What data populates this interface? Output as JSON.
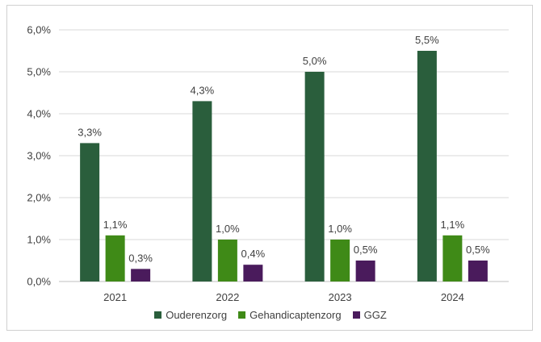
{
  "chart_data": {
    "type": "bar",
    "categories": [
      "2021",
      "2022",
      "2023",
      "2024"
    ],
    "series": [
      {
        "name": "Ouderenzorg",
        "values": [
          3.3,
          4.3,
          5.0,
          5.5
        ],
        "labels": [
          "3,3%",
          "4,3%",
          "5,0%",
          "5,5%"
        ],
        "color": "#2a5e3c"
      },
      {
        "name": "Gehandicaptenzorg",
        "values": [
          1.1,
          1.0,
          1.0,
          1.1
        ],
        "labels": [
          "1,1%",
          "1,0%",
          "1,0%",
          "1,1%"
        ],
        "color": "#3f8a17"
      },
      {
        "name": "GGZ",
        "values": [
          0.3,
          0.4,
          0.5,
          0.5
        ],
        "labels": [
          "0,3%",
          "0,4%",
          "0,5%",
          "0,5%"
        ],
        "color": "#4a1b5c"
      }
    ],
    "yticks": [
      "0,0%",
      "1,0%",
      "2,0%",
      "3,0%",
      "4,0%",
      "5,0%",
      "6,0%"
    ],
    "ylim": [
      0,
      6
    ],
    "grid": true,
    "legend_position": "bottom",
    "title": "",
    "xlabel": "",
    "ylabel": ""
  }
}
